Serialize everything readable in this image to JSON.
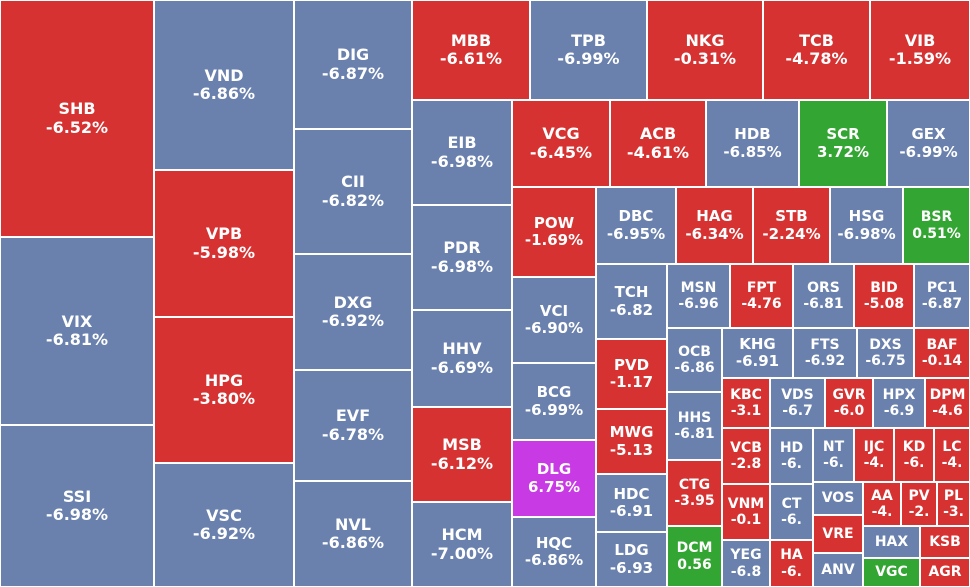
{
  "colors": {
    "red": "#d63232",
    "blue": "#6a80ad",
    "green": "#33a532",
    "purple": "#c83ae4"
  },
  "cells": [
    {
      "sym": "SHB",
      "pct": "-6.52%",
      "c": "red"
    },
    {
      "sym": "VIX",
      "pct": "-6.81%",
      "c": "blue"
    },
    {
      "sym": "SSI",
      "pct": "-6.98%",
      "c": "blue"
    },
    {
      "sym": "VND",
      "pct": "-6.86%",
      "c": "blue"
    },
    {
      "sym": "VPB",
      "pct": "-5.98%",
      "c": "red"
    },
    {
      "sym": "HPG",
      "pct": "-3.80%",
      "c": "red"
    },
    {
      "sym": "VSC",
      "pct": "-6.92%",
      "c": "blue"
    },
    {
      "sym": "DIG",
      "pct": "-6.87%",
      "c": "blue"
    },
    {
      "sym": "CII",
      "pct": "-6.82%",
      "c": "blue"
    },
    {
      "sym": "DXG",
      "pct": "-6.92%",
      "c": "blue"
    },
    {
      "sym": "EVF",
      "pct": "-6.78%",
      "c": "blue"
    },
    {
      "sym": "NVL",
      "pct": "-6.86%",
      "c": "blue"
    },
    {
      "sym": "MBB",
      "pct": "-6.61%",
      "c": "red"
    },
    {
      "sym": "TPB",
      "pct": "-6.99%",
      "c": "blue"
    },
    {
      "sym": "NKG",
      "pct": "-0.31%",
      "c": "red"
    },
    {
      "sym": "TCB",
      "pct": "-4.78%",
      "c": "red"
    },
    {
      "sym": "VIB",
      "pct": "-1.59%",
      "c": "red"
    },
    {
      "sym": "EIB",
      "pct": "-6.98%",
      "c": "blue"
    },
    {
      "sym": "PDR",
      "pct": "-6.98%",
      "c": "blue"
    },
    {
      "sym": "HHV",
      "pct": "-6.69%",
      "c": "blue"
    },
    {
      "sym": "MSB",
      "pct": "-6.12%",
      "c": "red"
    },
    {
      "sym": "HCM",
      "pct": "-7.00%",
      "c": "blue"
    },
    {
      "sym": "VCG",
      "pct": "-6.45%",
      "c": "red"
    },
    {
      "sym": "ACB",
      "pct": "-4.61%",
      "c": "red"
    },
    {
      "sym": "HDB",
      "pct": "-6.85%",
      "c": "blue"
    },
    {
      "sym": "SCR",
      "pct": "3.72%",
      "c": "green"
    },
    {
      "sym": "GEX",
      "pct": "-6.99%",
      "c": "blue"
    },
    {
      "sym": "POW",
      "pct": "-1.69%",
      "c": "red"
    },
    {
      "sym": "DBC",
      "pct": "-6.95%",
      "c": "blue"
    },
    {
      "sym": "HAG",
      "pct": "-6.34%",
      "c": "red"
    },
    {
      "sym": "STB",
      "pct": "-2.24%",
      "c": "red"
    },
    {
      "sym": "HSG",
      "pct": "-6.98%",
      "c": "blue"
    },
    {
      "sym": "BSR",
      "pct": "0.51%",
      "c": "green"
    },
    {
      "sym": "VCI",
      "pct": "-6.90%",
      "c": "blue"
    },
    {
      "sym": "BCG",
      "pct": "-6.99%",
      "c": "blue"
    },
    {
      "sym": "DLG",
      "pct": "6.75%",
      "c": "purple"
    },
    {
      "sym": "HQC",
      "pct": "-6.86%",
      "c": "blue"
    },
    {
      "sym": "TCH",
      "pct": "-6.82",
      "c": "blue"
    },
    {
      "sym": "PVD",
      "pct": "-1.17",
      "c": "red"
    },
    {
      "sym": "MWG",
      "pct": "-5.13",
      "c": "red"
    },
    {
      "sym": "HDC",
      "pct": "-6.91",
      "c": "blue"
    },
    {
      "sym": "LDG",
      "pct": "-6.93",
      "c": "blue"
    },
    {
      "sym": "MSN",
      "pct": "-6.96",
      "c": "blue"
    },
    {
      "sym": "FPT",
      "pct": "-4.76",
      "c": "red"
    },
    {
      "sym": "ORS",
      "pct": "-6.81",
      "c": "blue"
    },
    {
      "sym": "BID",
      "pct": "-5.08",
      "c": "red"
    },
    {
      "sym": "PC1",
      "pct": "-6.87",
      "c": "blue"
    },
    {
      "sym": "OCB",
      "pct": "-6.86",
      "c": "blue"
    },
    {
      "sym": "HHS",
      "pct": "-6.81",
      "c": "blue"
    },
    {
      "sym": "CTG",
      "pct": "-3.95",
      "c": "red"
    },
    {
      "sym": "DCM",
      "pct": "0.56",
      "c": "green"
    },
    {
      "sym": "KHG",
      "pct": "-6.91",
      "c": "blue"
    },
    {
      "sym": "FTS",
      "pct": "-6.92",
      "c": "blue"
    },
    {
      "sym": "DXS",
      "pct": "-6.75",
      "c": "blue"
    },
    {
      "sym": "BAF",
      "pct": "-0.14",
      "c": "red"
    },
    {
      "sym": "KBC",
      "pct": "-3.1",
      "c": "red"
    },
    {
      "sym": "VDS",
      "pct": "-6.7",
      "c": "blue"
    },
    {
      "sym": "GVR",
      "pct": "-6.0",
      "c": "red"
    },
    {
      "sym": "HPX",
      "pct": "-6.9",
      "c": "blue"
    },
    {
      "sym": "DPM",
      "pct": "-4.6",
      "c": "red"
    },
    {
      "sym": "VCB",
      "pct": "-2.8",
      "c": "red"
    },
    {
      "sym": "VNM",
      "pct": "-0.1",
      "c": "red"
    },
    {
      "sym": "YEG",
      "pct": "-6.8",
      "c": "blue"
    },
    {
      "sym": "HD",
      "pct": "-6.",
      "c": "blue"
    },
    {
      "sym": "CT",
      "pct": "-6.",
      "c": "blue"
    },
    {
      "sym": "HA",
      "pct": "-6.",
      "c": "red"
    },
    {
      "sym": "NT",
      "pct": "-6.",
      "c": "blue"
    },
    {
      "sym": "IJC",
      "pct": "-4.",
      "c": "red"
    },
    {
      "sym": "KD",
      "pct": "-6.",
      "c": "red"
    },
    {
      "sym": "LC",
      "pct": "-4.",
      "c": "red"
    },
    {
      "sym": "VOS",
      "pct": "",
      "c": "blue"
    },
    {
      "sym": "AA",
      "pct": "-4.",
      "c": "red"
    },
    {
      "sym": "PV",
      "pct": "-2.",
      "c": "red"
    },
    {
      "sym": "PL",
      "pct": "-3.",
      "c": "red"
    },
    {
      "sym": "VRE",
      "pct": "",
      "c": "red"
    },
    {
      "sym": "ANV",
      "pct": "",
      "c": "blue"
    },
    {
      "sym": "HAX",
      "pct": "",
      "c": "blue"
    },
    {
      "sym": "KSB",
      "pct": "",
      "c": "red"
    },
    {
      "sym": "VGC",
      "pct": "",
      "c": "green"
    },
    {
      "sym": "AGR",
      "pct": "",
      "c": "red"
    }
  ]
}
